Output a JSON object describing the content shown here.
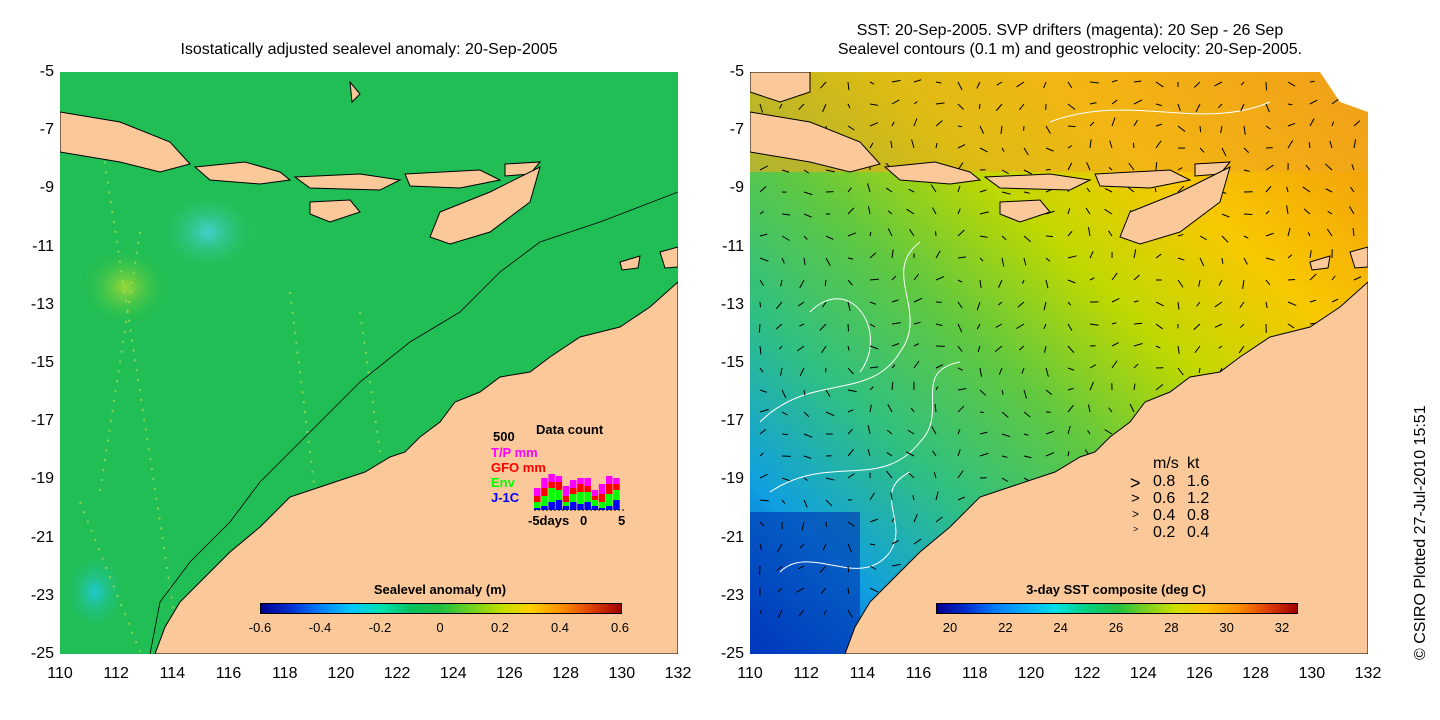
{
  "left_panel": {
    "title": "Isostatically adjusted sealevel anomaly: 20-Sep-2005",
    "colorbar": {
      "title": "Sealevel anomaly (m)",
      "ticks": [
        "-0.6",
        "-0.4",
        "-0.2",
        "0",
        "0.2",
        "0.4",
        "0.6"
      ],
      "colors": [
        "#00008f",
        "#0030d0",
        "#0080ff",
        "#00c8ff",
        "#00e0b0",
        "#00c060",
        "#20c040",
        "#70d020",
        "#c0e000",
        "#ffd000",
        "#ff9000",
        "#e04000",
        "#a00000"
      ]
    },
    "data_count": {
      "title": "Data count",
      "max_label": "500",
      "series": [
        {
          "name": "T/P mm",
          "color": "#ff00ff"
        },
        {
          "name": "GFO mm",
          "color": "#ff0000"
        },
        {
          "name": "Env",
          "color": "#00ff00"
        },
        {
          "name": "J-1C",
          "color": "#0000ff"
        }
      ],
      "x_ticks": [
        "-5days",
        "0",
        "5"
      ]
    }
  },
  "right_panel": {
    "title_line1": "SST: 20-Sep-2005. SVP drifters (magenta): 20 Sep - 26 Sep",
    "title_line2": "Sealevel contours (0.1 m) and geostrophic velocity: 20-Sep-2005.",
    "colorbar": {
      "title": "3-day SST composite (deg C)",
      "ticks": [
        "20",
        "22",
        "24",
        "26",
        "28",
        "30",
        "32"
      ],
      "colors": [
        "#00008f",
        "#0030d0",
        "#0080ff",
        "#00b0ff",
        "#00e0e0",
        "#00d080",
        "#20c040",
        "#80d020",
        "#d0e000",
        "#ffc000",
        "#ff9000",
        "#e04000",
        "#a00000"
      ]
    },
    "velocity_legend": {
      "header_ms": "m/s",
      "header_kt": "kt",
      "rows": [
        {
          "ms": "0.8",
          "kt": "1.6"
        },
        {
          "ms": "0.6",
          "kt": "1.2"
        },
        {
          "ms": "0.4",
          "kt": "0.8"
        },
        {
          "ms": "0.2",
          "kt": "0.4"
        }
      ]
    }
  },
  "axes": {
    "y_ticks": [
      "-5",
      "-7",
      "-9",
      "-11",
      "-13",
      "-15",
      "-17",
      "-19",
      "-21",
      "-23",
      "-25"
    ],
    "x_ticks": [
      "110",
      "112",
      "114",
      "116",
      "118",
      "120",
      "122",
      "124",
      "126",
      "128",
      "130",
      "132"
    ]
  },
  "credit": "© CSIRO Plotted 27-Jul-2010 15:51",
  "colors": {
    "land": "#fbc999",
    "ocean_left": "#22c049",
    "ocean_right_warm": "#f0c000",
    "ocean_right_cool": "#40c060"
  }
}
